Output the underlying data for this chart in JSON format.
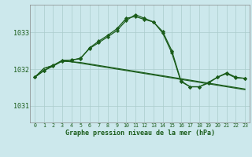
{
  "title": "Graphe pression niveau de la mer (hPa)",
  "background_color": "#cce8ec",
  "grid_color": "#aacccc",
  "line_color": "#1a5c1a",
  "x_ticks": [
    0,
    1,
    2,
    3,
    4,
    5,
    6,
    7,
    8,
    9,
    10,
    11,
    12,
    13,
    14,
    15,
    16,
    17,
    18,
    19,
    20,
    21,
    22,
    23
  ],
  "ylim": [
    1030.55,
    1033.75
  ],
  "yticks": [
    1031,
    1032,
    1033
  ],
  "series1": [
    1031.78,
    1031.96,
    1032.08,
    1032.22,
    1032.25,
    1032.28,
    1032.58,
    1032.76,
    1032.92,
    1033.1,
    1033.38,
    1033.43,
    1033.35,
    1033.28,
    1033.02,
    1032.5,
    1031.68,
    1031.52,
    1031.52,
    1031.62,
    1031.78,
    1031.88,
    1031.76,
    1031.75
  ],
  "series2": [
    1031.78,
    1031.96,
    1032.1,
    1032.24,
    1032.24,
    1032.3,
    1032.56,
    1032.72,
    1032.88,
    1033.05,
    1033.32,
    1033.48,
    1033.38,
    1033.28,
    1032.98,
    1032.44,
    1031.66,
    1031.52,
    1031.52,
    1031.64,
    1031.78,
    1031.9,
    1031.78,
    1031.75
  ],
  "series3": [
    1031.78,
    1032.02,
    1032.1,
    1032.22,
    1032.2,
    1032.18,
    1032.14,
    1032.1,
    1032.06,
    1032.02,
    1031.98,
    1031.94,
    1031.9,
    1031.86,
    1031.82,
    1031.78,
    1031.74,
    1031.7,
    1031.66,
    1031.62,
    1031.58,
    1031.54,
    1031.5,
    1031.46
  ],
  "series4": [
    1031.78,
    1032.02,
    1032.1,
    1032.22,
    1032.2,
    1032.16,
    1032.12,
    1032.08,
    1032.04,
    1032.0,
    1031.96,
    1031.92,
    1031.88,
    1031.84,
    1031.8,
    1031.76,
    1031.72,
    1031.68,
    1031.64,
    1031.6,
    1031.56,
    1031.52,
    1031.48,
    1031.44
  ]
}
